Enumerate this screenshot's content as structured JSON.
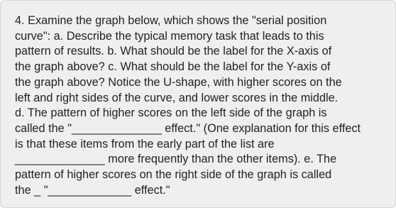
{
  "question": {
    "lines": [
      "4. Examine the graph below, which shows the \"serial position",
      "curve\": a. Describe the typical memory task that leads to this",
      "pattern of results. b. What should be the label for the X-axis of",
      "the graph above? c. What should be the label for the Y-axis of",
      "the graph above? Notice the U-shape, with higher scores on the",
      "left and right sides of the curve, and lower scores in the middle.",
      "d. The pattern of higher scores on the left side of the graph is",
      "called the \"______________ effect.\" (One explanation for this effect",
      "is that these items from the early part of the list are",
      "______________ more frequently than the other items). e. The",
      "pattern of higher scores on the right side of the graph is called",
      "the _ \"_____________ effect.\""
    ]
  }
}
